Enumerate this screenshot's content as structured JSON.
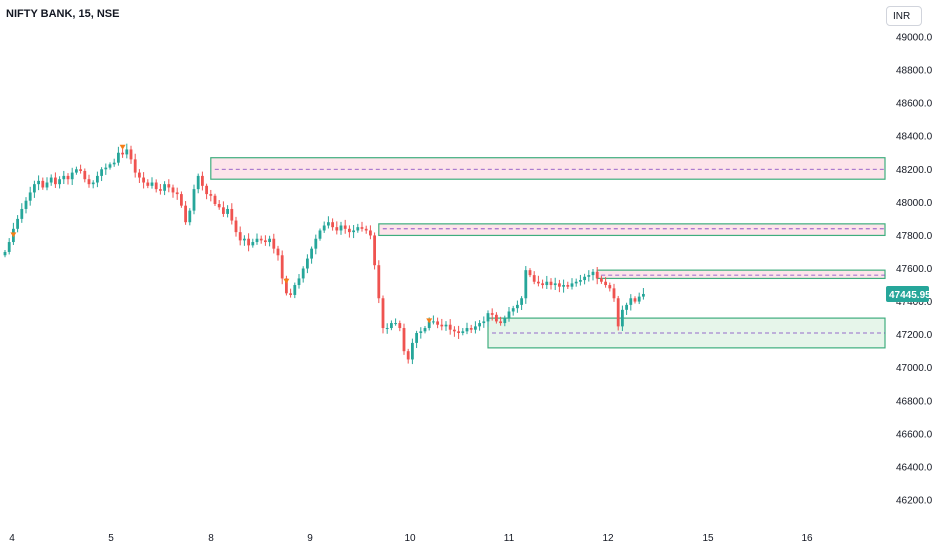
{
  "header": {
    "symbol_title": "NIFTY BANK, 15, NSE",
    "currency": "INR"
  },
  "last_price": {
    "label": "47445.95",
    "value": 47445.95,
    "color": "#26a69a"
  },
  "colors": {
    "up": "#26a69a",
    "down": "#ef5350",
    "supply_fill": "#fde4ea",
    "demand_fill": "#e6f5ea",
    "zone_border": "#3fae7e",
    "zone_midline": "#7b3fbf",
    "marker": "#f57f17",
    "axis_text": "#131722"
  },
  "chart_data": {
    "type": "candlestick",
    "title": "NIFTY BANK, 15, NSE",
    "ylim": [
      46050,
      49150
    ],
    "y_ticks": [
      "49000.00",
      "48800.00",
      "48600.00",
      "48400.00",
      "48200.00",
      "48000.00",
      "47800.00",
      "47600.00",
      "47400.00",
      "47200.00",
      "47000.00",
      "46800.00",
      "46600.00",
      "46400.00",
      "46200.00"
    ],
    "x_tick_labels": [
      "4",
      "5",
      "8",
      "9",
      "10",
      "11",
      "12",
      "15",
      "16"
    ],
    "grid": false,
    "closes": [
      47700,
      47760,
      47840,
      47900,
      47960,
      48010,
      48060,
      48110,
      48130,
      48090,
      48120,
      48150,
      48110,
      48140,
      48160,
      48140,
      48180,
      48200,
      48190,
      48140,
      48110,
      48120,
      48160,
      48200,
      48210,
      48230,
      48240,
      48300,
      48290,
      48320,
      48260,
      48180,
      48150,
      48120,
      48100,
      48120,
      48080,
      48070,
      48110,
      48090,
      48060,
      48050,
      47980,
      47880,
      47950,
      48080,
      48160,
      48100,
      48050,
      48040,
      47990,
      47970,
      47930,
      47960,
      47890,
      47820,
      47770,
      47780,
      47740,
      47760,
      47780,
      47770,
      47760,
      47780,
      47720,
      47680,
      47540,
      47450,
      47440,
      47500,
      47540,
      47600,
      47660,
      47720,
      47780,
      47830,
      47860,
      47880,
      47850,
      47830,
      47860,
      47840,
      47820,
      47830,
      47850,
      47840,
      47830,
      47800,
      47620,
      47420,
      47240,
      47240,
      47270,
      47270,
      47240,
      47100,
      47050,
      47150,
      47210,
      47220,
      47240,
      47280,
      47280,
      47260,
      47250,
      47260,
      47230,
      47220,
      47210,
      47220,
      47240,
      47230,
      47250,
      47270,
      47280,
      47330,
      47320,
      47280,
      47270,
      47300,
      47340,
      47360,
      47380,
      47420,
      47590,
      47560,
      47520,
      47510,
      47500,
      47520,
      47500,
      47510,
      47490,
      47500,
      47490,
      47510,
      47520,
      47530,
      47550,
      47560,
      47580,
      47540,
      47520,
      47500,
      47480,
      47420,
      47250,
      47350,
      47380,
      47420,
      47400,
      47430,
      47445.95
    ],
    "markers": [
      {
        "index": 2,
        "value": 47800
      },
      {
        "index": 28,
        "value": 48330
      },
      {
        "index": 67,
        "value": 47520
      },
      {
        "index": 101,
        "value": 47280
      }
    ],
    "zones": [
      {
        "kind": "supply",
        "start_index": 49,
        "top": 48270,
        "bottom": 48140,
        "mid": 48200
      },
      {
        "kind": "supply",
        "start_index": 89,
        "top": 47870,
        "bottom": 47800,
        "mid": 47840
      },
      {
        "kind": "supply",
        "start_index": 141,
        "top": 47590,
        "bottom": 47540,
        "mid": 47560
      },
      {
        "kind": "demand",
        "start_index": 115,
        "top": 47300,
        "bottom": 47120,
        "mid": 47210
      }
    ]
  }
}
